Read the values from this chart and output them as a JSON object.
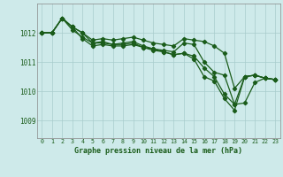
{
  "title": "Graphe pression niveau de la mer (hPa)",
  "bg_color": "#ceeaea",
  "line_color": "#1a5c1a",
  "grid_color": "#a8cccc",
  "tick_color": "#1a5c1a",
  "xlim": [
    -0.5,
    23.5
  ],
  "ylim": [
    1008.4,
    1013.0
  ],
  "yticks": [
    1009,
    1010,
    1011,
    1012
  ],
  "xticks": [
    0,
    1,
    2,
    3,
    4,
    5,
    6,
    7,
    8,
    9,
    10,
    11,
    12,
    13,
    14,
    15,
    16,
    17,
    18,
    19,
    20,
    21,
    22,
    23
  ],
  "series": [
    [
      1012.0,
      1012.0,
      1012.5,
      1012.2,
      1012.0,
      1011.75,
      1011.8,
      1011.75,
      1011.8,
      1011.85,
      1011.75,
      1011.65,
      1011.6,
      1011.55,
      1011.8,
      1011.75,
      1011.7,
      1011.55,
      1011.3,
      1010.1,
      1010.5,
      1010.55,
      1010.45,
      1010.4
    ],
    [
      1012.0,
      1012.0,
      1012.5,
      1012.2,
      1012.0,
      1011.65,
      1011.7,
      1011.6,
      1011.65,
      1011.7,
      1011.55,
      1011.45,
      1011.4,
      1011.35,
      1011.65,
      1011.6,
      1011.0,
      1010.65,
      1010.55,
      1009.55,
      1010.5,
      1010.55,
      1010.45,
      1010.4
    ],
    [
      1012.0,
      1012.0,
      1012.5,
      1012.2,
      1011.8,
      1011.55,
      1011.6,
      1011.55,
      1011.55,
      1011.6,
      1011.5,
      1011.4,
      1011.35,
      1011.25,
      1011.3,
      1011.2,
      1010.8,
      1010.5,
      1009.9,
      1009.55,
      1009.6,
      1010.3,
      1010.45,
      1010.4
    ],
    [
      1012.0,
      1012.0,
      1012.5,
      1012.1,
      1011.85,
      1011.65,
      1011.65,
      1011.6,
      1011.6,
      1011.65,
      1011.5,
      1011.45,
      1011.35,
      1011.25,
      1011.3,
      1011.1,
      1010.5,
      1010.35,
      1009.75,
      1009.35,
      1010.5,
      1010.55,
      1010.45,
      1010.4
    ]
  ]
}
